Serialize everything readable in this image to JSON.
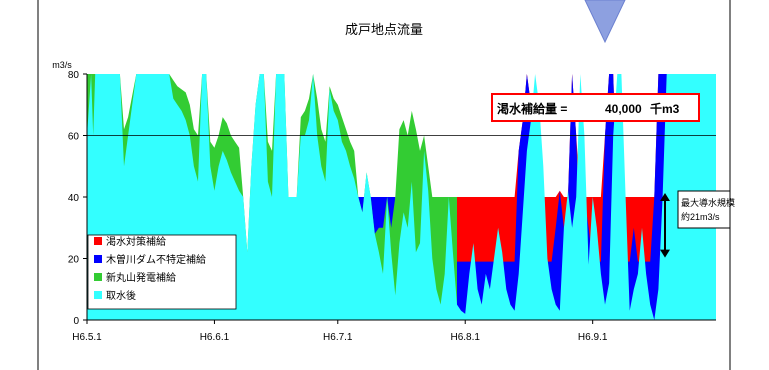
{
  "chart_data": {
    "type": "area",
    "title": "成戸地点流量",
    "ylabel": "m3/s",
    "xlabel": "",
    "ylim": [
      0,
      80
    ],
    "yticks": [
      0,
      20,
      40,
      60,
      80
    ],
    "xticks": [
      "H6.5.1",
      "H6.6.1",
      "H6.7.1",
      "H6.8.1",
      "H6.9.1"
    ],
    "xtick_days": [
      0,
      31,
      61,
      92,
      123
    ],
    "xlim_days": [
      0,
      153
    ],
    "gridlines": [
      60
    ],
    "legend_position": "bottom-left",
    "colors": {
      "drought": "#ff0000",
      "kiso": "#0000ff",
      "shinmaruyama": "#33cc33",
      "after": "#33ffff",
      "callout_border": "#ff0000"
    },
    "series": [
      {
        "name": "取水後",
        "key": "after",
        "x": [
          0,
          0.6,
          1,
          1.5,
          2,
          2.5,
          3,
          5,
          6,
          7,
          8,
          9,
          10,
          12,
          14,
          15,
          16,
          17,
          18,
          19,
          20,
          21,
          22,
          23,
          24,
          25,
          26,
          27,
          28,
          29,
          30,
          31,
          32,
          33,
          34,
          35,
          36,
          37,
          38,
          39,
          40,
          41,
          42,
          43,
          44,
          45,
          46,
          47,
          48,
          49,
          50,
          51,
          52,
          53,
          54,
          55,
          56,
          57,
          58,
          59,
          60,
          61,
          62,
          63,
          64,
          65,
          66,
          67,
          68,
          69,
          70,
          71,
          72,
          73,
          74,
          75,
          76,
          77,
          78,
          79,
          80,
          81,
          82,
          83,
          84,
          85,
          86,
          87,
          88,
          89,
          90,
          91,
          92,
          93,
          94,
          95,
          96,
          97,
          98,
          99,
          100,
          101,
          102,
          103,
          104,
          105,
          106,
          107,
          108,
          109,
          110,
          111,
          112,
          113,
          114,
          115,
          116,
          117,
          118,
          119,
          120,
          121,
          122,
          123,
          124,
          125,
          126,
          127,
          128,
          129,
          130,
          131,
          132,
          133,
          134,
          135,
          136,
          137,
          138,
          139,
          140,
          141,
          142,
          143,
          144,
          145,
          146,
          147,
          148,
          149,
          150,
          151,
          152,
          153
        ],
        "values": [
          60,
          72,
          80,
          60,
          80,
          80,
          80,
          80,
          80,
          80,
          80,
          50,
          60,
          80,
          80,
          80,
          80,
          80,
          80,
          80,
          80,
          72,
          70,
          68,
          65,
          60,
          50,
          45,
          80,
          80,
          50,
          42,
          50,
          55,
          52,
          48,
          45,
          42,
          40,
          22,
          50,
          70,
          80,
          80,
          45,
          40,
          80,
          80,
          80,
          40,
          40,
          40,
          60,
          60,
          65,
          80,
          60,
          50,
          45,
          75,
          68,
          65,
          58,
          55,
          50,
          46,
          40,
          35,
          48,
          40,
          28,
          22,
          15,
          40,
          22,
          8,
          25,
          35,
          30,
          45,
          22,
          25,
          55,
          42,
          20,
          10,
          5,
          15,
          40,
          22,
          5,
          3,
          2,
          15,
          25,
          10,
          5,
          15,
          10,
          20,
          30,
          22,
          10,
          5,
          3,
          15,
          35,
          55,
          65,
          80,
          70,
          50,
          20,
          10,
          5,
          3,
          30,
          42,
          30,
          40,
          80,
          60,
          18,
          40,
          30,
          15,
          5,
          12,
          60,
          80,
          80,
          40,
          3,
          10,
          15,
          30,
          15,
          5,
          0,
          10,
          40,
          80,
          80,
          80,
          80,
          80,
          80,
          80,
          80,
          80,
          80,
          80,
          80,
          80
        ]
      },
      {
        "name": "新丸山発電補給",
        "key": "shinmaruyama",
        "x": [
          0,
          0.6,
          1,
          1.5,
          2,
          2.5,
          3,
          5,
          6,
          7,
          8,
          9,
          10,
          12,
          14,
          15,
          16,
          17,
          18,
          19,
          20,
          21,
          22,
          23,
          24,
          25,
          26,
          27,
          28,
          29,
          30,
          31,
          32,
          33,
          34,
          35,
          36,
          37,
          38,
          39,
          40,
          41,
          42,
          43,
          44,
          45,
          46,
          47,
          48,
          49,
          50,
          51,
          52,
          53,
          54,
          55,
          56,
          57,
          58,
          59,
          60,
          61,
          62,
          63,
          64,
          65,
          66,
          67,
          68,
          69,
          70,
          71,
          72,
          73,
          74,
          75,
          76,
          77,
          78,
          79,
          80,
          81,
          82,
          83,
          84,
          85,
          86,
          87,
          88,
          89,
          90
        ],
        "values": [
          80,
          80,
          80,
          80,
          80,
          80,
          80,
          80,
          80,
          80,
          80,
          62,
          66,
          80,
          80,
          80,
          80,
          80,
          80,
          80,
          80,
          78,
          76,
          75,
          74,
          70,
          62,
          60,
          80,
          80,
          58,
          56,
          60,
          66,
          64,
          60,
          58,
          56,
          40,
          22,
          50,
          70,
          80,
          80,
          58,
          55,
          80,
          80,
          80,
          40,
          40,
          40,
          66,
          68,
          72,
          80,
          72,
          62,
          58,
          76,
          72,
          70,
          66,
          62,
          58,
          55,
          40,
          35,
          48,
          40,
          28,
          30,
          30,
          40,
          30,
          40,
          62,
          65,
          60,
          68,
          62,
          55,
          60,
          50,
          40,
          40,
          40,
          40,
          40,
          40,
          40
        ]
      },
      {
        "name": "木曽川ダム不特定補給",
        "key": "kiso",
        "x": [
          0,
          60,
          64,
          66,
          67,
          68,
          69,
          70,
          71,
          72,
          73,
          74,
          75,
          76,
          77,
          78,
          79,
          80,
          81,
          82,
          83,
          84,
          85,
          86,
          87,
          88,
          89,
          90,
          91,
          92,
          93,
          94,
          95,
          96,
          97,
          98,
          99,
          100,
          101,
          102,
          103,
          104,
          105,
          106,
          107,
          108,
          109,
          110,
          111,
          112,
          113,
          114,
          115,
          116,
          117,
          118,
          119,
          120,
          121,
          122,
          123,
          124,
          125,
          126,
          127,
          128,
          129,
          130,
          131,
          132,
          133,
          134,
          135,
          136,
          137,
          138,
          139,
          140,
          141,
          142,
          143,
          153
        ],
        "values": [
          0,
          0,
          0,
          40,
          40,
          40,
          40,
          40,
          40,
          40,
          40,
          40,
          40,
          22,
          40,
          30,
          40,
          22,
          25,
          55,
          42,
          20,
          19,
          19,
          19,
          19,
          19,
          19,
          19,
          19,
          19,
          19,
          19,
          19,
          19,
          19,
          19,
          19,
          19,
          19,
          19,
          19,
          55,
          65,
          80,
          70,
          50,
          20,
          19,
          19,
          19,
          30,
          42,
          30,
          40,
          80,
          60,
          19,
          40,
          30,
          19,
          19,
          19,
          60,
          80,
          80,
          40,
          19,
          19,
          19,
          30,
          19,
          19,
          19,
          19,
          40,
          80,
          80,
          80,
          80,
          80,
          80
        ]
      },
      {
        "name": "渇水対策補給",
        "key": "drought",
        "x": [
          0,
          84,
          85,
          86,
          87,
          88,
          89,
          90,
          91,
          92,
          93,
          94,
          95,
          96,
          97,
          98,
          99,
          100,
          101,
          102,
          103,
          104,
          105,
          106,
          107,
          108,
          109,
          110,
          111,
          112,
          113,
          114,
          115,
          116,
          117,
          118,
          119,
          120,
          121,
          122,
          123,
          124,
          125,
          126,
          127,
          128,
          129,
          130,
          131,
          132,
          133,
          134,
          135,
          136,
          137,
          138,
          139,
          140,
          153
        ],
        "values": [
          0,
          0,
          40,
          40,
          40,
          40,
          40,
          40,
          40,
          40,
          40,
          40,
          40,
          40,
          40,
          40,
          40,
          40,
          40,
          40,
          40,
          40,
          55,
          65,
          80,
          70,
          50,
          40,
          40,
          40,
          40,
          40,
          42,
          40,
          40,
          80,
          60,
          40,
          40,
          40,
          40,
          40,
          40,
          60,
          80,
          80,
          40,
          40,
          40,
          40,
          40,
          40,
          40,
          40,
          40,
          40,
          80,
          80,
          80
        ]
      }
    ],
    "legend": [
      "渇水対策補給",
      "木曽川ダム不特定補給",
      "新丸山発電補給",
      "取水後"
    ],
    "callout": {
      "label": "渇水補給量 =",
      "value": "40,000",
      "unit": "千m3"
    },
    "annotation": {
      "line1": "最大導水規模",
      "line2": "約21m3/s",
      "from_value": 40,
      "to_value": 19
    }
  }
}
